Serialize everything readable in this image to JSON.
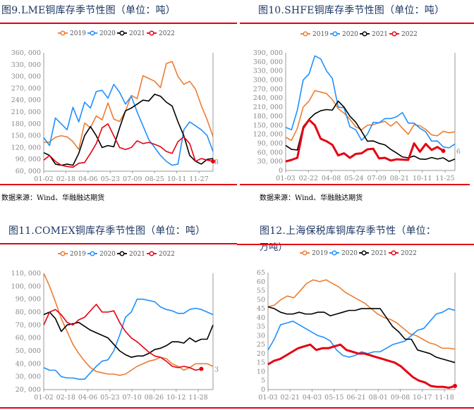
{
  "figures": [
    {
      "title": "图9.LME铜库存季节性图（单位：吨）",
      "source": "数据来源：Wind、华融融达期货",
      "end_label": "8"
    },
    {
      "title": "图10.SHFE铜库存季节性图（单位：吨）",
      "source": "数据来源：Wind、华融融达期货",
      "end_label": "6"
    },
    {
      "title": "图11.COMEX铜库存季节性图（单位：吨）",
      "source": "",
      "end_label": "3"
    },
    {
      "title": "图12.上海保税库铜库存季节性（单位：",
      "title_line2": "万吨）",
      "source": "",
      "end_label": ""
    }
  ],
  "colors": {
    "2019": "#ed7d31",
    "2020": "#1e90ff",
    "2021": "#000000",
    "2022": "#e60012",
    "rule": "#e60012"
  },
  "chart_data": [
    {
      "type": "line",
      "title": "LME铜库存季节性图（单位：吨）",
      "ylim": [
        60000,
        360000
      ],
      "ystep": 30000,
      "x_ticks": [
        "01-02",
        "02-18",
        "04-06",
        "05-23",
        "07-09",
        "08-25",
        "10-11",
        "11-27"
      ],
      "legend": "top",
      "grid": false,
      "series": [
        {
          "name": "2019",
          "values": [
            133,
            134,
            146,
            150,
            147,
            135,
            115,
            182,
            170,
            200,
            190,
            233,
            192,
            186,
            212,
            252,
            244,
            302,
            295,
            288,
            272,
            333,
            338,
            300,
            280,
            288,
            268,
            226,
            190,
            148
          ]
        },
        {
          "name": "2020",
          "values": [
            145,
            125,
            195,
            180,
            165,
            222,
            185,
            235,
            220,
            262,
            265,
            245,
            280,
            260,
            230,
            250,
            210,
            175,
            140,
            120,
            100,
            85,
            75,
            78,
            165,
            185,
            175,
            165,
            150,
            110
          ]
        },
        {
          "name": "2021",
          "values": [
            107,
            100,
            78,
            75,
            78,
            75,
            105,
            150,
            173,
            150,
            120,
            125,
            122,
            170,
            213,
            220,
            230,
            240,
            238,
            255,
            250,
            235,
            225,
            185,
            150,
            100,
            85,
            78,
            90,
            92
          ]
        },
        {
          "name": "2022",
          "values": [
            88,
            100,
            85,
            75,
            72,
            70,
            80,
            82,
            105,
            130,
            170,
            180,
            150,
            120,
            115,
            120,
            137,
            130,
            133,
            128,
            122,
            110,
            105,
            135,
            147,
            130,
            85,
            92,
            88,
            85
          ]
        }
      ],
      "unit_scale": 1000
    },
    {
      "type": "line",
      "title": "SHFE铜库存季节性图（单位：吨）",
      "ylim": [
        0,
        390000
      ],
      "ystep": 30000,
      "x_ticks": [
        "01-03",
        "02-22",
        "04-08",
        "05-24",
        "07-09",
        "08-21",
        "10-11",
        "11-25"
      ],
      "legend": "top",
      "grid": false,
      "series": [
        {
          "name": "2019",
          "values": [
            110,
            100,
            140,
            210,
            230,
            265,
            260,
            255,
            235,
            205,
            190,
            170,
            145,
            135,
            150,
            152,
            158,
            163,
            147,
            162,
            140,
            120,
            152,
            148,
            136,
            118,
            115,
            130,
            125,
            128
          ]
        },
        {
          "name": "2020",
          "values": [
            143,
            135,
            200,
            300,
            320,
            380,
            370,
            330,
            305,
            210,
            208,
            145,
            135,
            100,
            120,
            160,
            158,
            172,
            172,
            178,
            192,
            157,
            157,
            140,
            128,
            97,
            98,
            78,
            75,
            88
          ]
        },
        {
          "name": "2021",
          "values": [
            83,
            70,
            68,
            145,
            170,
            188,
            198,
            202,
            200,
            230,
            210,
            180,
            160,
            130,
            97,
            98,
            90,
            85,
            70,
            58,
            45,
            42,
            48,
            38,
            37,
            43,
            38,
            42,
            30,
            38
          ]
        },
        {
          "name": "2022",
          "values": [
            30,
            35,
            42,
            140,
            168,
            150,
            105,
            97,
            85,
            50,
            57,
            42,
            55,
            57,
            70,
            72,
            40,
            42,
            33,
            37,
            36,
            35,
            90,
            62,
            88,
            68,
            78,
            65
          ]
        }
      ],
      "unit_scale": 1000
    },
    {
      "type": "line",
      "title": "COMEX铜库存季节性图（单位：吨）",
      "ylim": [
        20000,
        110000
      ],
      "ystep": 10000,
      "x_ticks": [
        "01-02",
        "02-18",
        "04-06",
        "05-23",
        "07-10",
        "08-26",
        "10-12",
        "11-28"
      ],
      "legend": "top",
      "grid": false,
      "series": [
        {
          "name": "2019",
          "values": [
            110,
            100,
            88,
            75,
            65,
            55,
            48,
            42,
            37,
            34,
            33,
            32,
            32,
            31,
            32,
            35,
            38,
            40,
            42,
            43,
            45,
            44,
            40,
            38,
            35,
            37,
            40,
            40,
            40,
            38
          ]
        },
        {
          "name": "2020",
          "values": [
            37,
            35,
            35,
            30,
            29,
            29,
            28,
            28,
            33,
            38,
            42,
            43,
            50,
            62,
            76,
            80,
            90,
            90,
            89,
            88,
            84,
            82,
            81,
            79,
            79,
            82,
            83,
            82,
            80,
            78
          ]
        },
        {
          "name": "2021",
          "values": [
            78,
            80,
            75,
            65,
            70,
            71,
            72,
            69,
            66,
            64,
            62,
            60,
            55,
            50,
            47,
            45,
            46,
            46,
            48,
            51,
            52,
            54,
            57,
            57,
            56,
            60,
            57,
            59,
            59,
            70
          ]
        },
        {
          "name": "2022",
          "values": [
            70,
            80,
            82,
            78,
            72,
            70,
            74,
            76,
            81,
            86,
            80,
            80,
            81,
            72,
            65,
            60,
            57,
            53,
            49,
            46,
            45,
            42,
            38,
            37,
            38,
            37,
            35,
            36
          ]
        }
      ],
      "unit_scale": 1000
    },
    {
      "type": "line",
      "title": "上海保税库铜库存季节性（单位：万吨）",
      "ylim": [
        0,
        65
      ],
      "ystep": 5,
      "x_ticks": [
        "01-03",
        "02-21",
        "04-03",
        "05-15",
        "06-21",
        "08-01",
        "09-08",
        "10-17",
        "11-18"
      ],
      "legend": "top",
      "grid": false,
      "series": [
        {
          "name": "2019",
          "values": [
            46,
            47,
            50,
            52,
            51,
            55,
            59,
            61,
            60,
            61,
            59,
            57,
            54,
            52,
            50,
            48,
            45,
            42,
            40,
            39,
            37,
            34,
            31,
            30,
            28,
            26,
            25,
            23,
            23,
            22.5
          ]
        },
        {
          "name": "2020",
          "values": [
            22,
            28,
            36,
            37,
            38,
            36,
            34,
            32,
            30,
            29,
            27,
            22,
            19,
            18,
            19,
            21,
            20,
            21,
            21,
            23,
            25,
            26,
            27,
            30,
            33,
            34,
            38,
            42,
            43,
            45,
            44
          ]
        },
        {
          "name": "2021",
          "values": [
            46,
            45,
            43,
            42,
            42,
            43,
            42,
            42,
            43,
            43,
            41,
            42,
            43,
            44,
            44,
            45,
            45,
            45,
            45,
            40,
            35,
            32,
            28,
            28,
            22,
            21,
            20,
            18,
            17,
            16,
            15
          ]
        },
        {
          "name": "2022",
          "values": [
            14,
            16,
            17,
            19,
            21,
            23,
            24,
            25,
            22,
            23,
            23,
            24,
            25,
            22,
            21,
            20,
            20,
            19,
            18,
            17,
            16,
            15,
            13,
            10,
            7,
            5,
            4,
            2,
            1.5,
            1.5,
            1,
            2
          ]
        }
      ],
      "unit_scale": 1
    }
  ]
}
